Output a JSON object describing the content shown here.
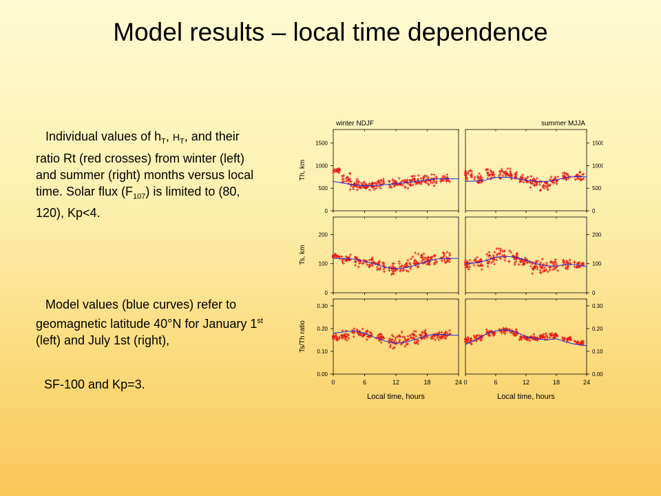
{
  "title": "Model results – local time dependence",
  "text": {
    "p1": {
      "a": "Individual   values of h",
      "sub1": "T",
      "b": ", ",
      "c": "H",
      "sub2": "T",
      "d": ", and their ratio Rt (red crosses) from winter (left) and summer (right) months versus local time. Solar flux (F",
      "sub3": "107",
      "e": ") is limited to (80, 120), Kp<4."
    },
    "p2": {
      "a": "Model values (blue curves) refer to geomagnetic latitude 40°N for January 1",
      "sup": "st",
      "b": " (left) and July 1st (right),"
    },
    "p3": "SF-100 and Kp=3."
  },
  "chart_data": {
    "type": "scatter",
    "panel_titles": [
      "winter NDJF",
      "summer MJJA"
    ],
    "xlabel": "Local time, hours",
    "xlim": [
      0,
      24
    ],
    "xticks": [
      "0",
      "6",
      "12",
      "18",
      "24"
    ],
    "rows": [
      {
        "ylabel": "Th, km",
        "ylim": [
          0,
          1800
        ],
        "yticks": [
          0,
          500,
          1000,
          1500
        ],
        "ytick_labels": [
          "0",
          "500",
          "1000",
          "1500"
        ],
        "winter_model": {
          "x": [
            0,
            2,
            4,
            6,
            8,
            10,
            12,
            14,
            16,
            18,
            20,
            22,
            24
          ],
          "y": [
            650,
            610,
            570,
            555,
            560,
            580,
            600,
            625,
            655,
            685,
            705,
            710,
            705
          ]
        },
        "summer_model": {
          "x": [
            0,
            2,
            4,
            6,
            8,
            10,
            12,
            14,
            16,
            18,
            20,
            22,
            24
          ],
          "y": [
            650,
            660,
            680,
            740,
            745,
            720,
            680,
            655,
            650,
            685,
            740,
            760,
            750
          ]
        },
        "winter_clusters": [
          [
            0.4,
            900,
            100
          ],
          [
            2.5,
            700,
            150
          ],
          [
            4.0,
            600,
            150
          ],
          [
            5.5,
            540,
            120
          ],
          [
            7.0,
            560,
            120
          ],
          [
            9.0,
            600,
            150
          ],
          [
            11.5,
            590,
            150
          ],
          [
            13.5,
            620,
            150
          ],
          [
            15.5,
            650,
            150
          ],
          [
            17.0,
            700,
            150
          ],
          [
            19.0,
            680,
            150
          ],
          [
            21.5,
            690,
            150
          ]
        ],
        "summer_clusters": [
          [
            0.4,
            800,
            150
          ],
          [
            2.5,
            700,
            160
          ],
          [
            5.0,
            800,
            150
          ],
          [
            7.5,
            820,
            150
          ],
          [
            9.5,
            800,
            150
          ],
          [
            11.5,
            700,
            150
          ],
          [
            13.5,
            600,
            200
          ],
          [
            15.5,
            550,
            250
          ],
          [
            17.5,
            660,
            150
          ],
          [
            20.0,
            750,
            150
          ],
          [
            22.5,
            770,
            120
          ]
        ]
      },
      {
        "ylabel": "Ts, km",
        "ylim": [
          0,
          260
        ],
        "yticks": [
          0,
          100,
          200
        ],
        "ytick_labels": [
          "0",
          "100",
          "200"
        ],
        "winter_model": {
          "x": [
            0,
            2,
            4,
            6,
            8,
            10,
            12,
            14,
            16,
            18,
            20,
            22,
            24
          ],
          "y": [
            118,
            118,
            115,
            108,
            98,
            88,
            82,
            86,
            96,
            108,
            116,
            118,
            118
          ]
        },
        "summer_model": {
          "x": [
            0,
            2,
            4,
            6,
            8,
            10,
            12,
            14,
            16,
            18,
            20,
            22,
            24
          ],
          "y": [
            100,
            102,
            110,
            122,
            125,
            122,
            112,
            100,
            92,
            92,
            98,
            96,
            90
          ]
        },
        "winter_clusters": [
          [
            0.4,
            125,
            12
          ],
          [
            2.5,
            118,
            25
          ],
          [
            5.0,
            110,
            30
          ],
          [
            7.0,
            100,
            30
          ],
          [
            9.0,
            90,
            30
          ],
          [
            11.5,
            85,
            30
          ],
          [
            13.5,
            90,
            35
          ],
          [
            15.5,
            105,
            35
          ],
          [
            17.5,
            115,
            35
          ],
          [
            19.0,
            112,
            30
          ],
          [
            21.5,
            120,
            25
          ]
        ],
        "summer_clusters": [
          [
            0.4,
            100,
            25
          ],
          [
            2.5,
            105,
            30
          ],
          [
            5.0,
            120,
            35
          ],
          [
            7.0,
            130,
            40
          ],
          [
            9.5,
            120,
            35
          ],
          [
            11.5,
            105,
            30
          ],
          [
            13.5,
            95,
            35
          ],
          [
            15.5,
            85,
            35
          ],
          [
            17.5,
            95,
            30
          ],
          [
            20.0,
            100,
            25
          ],
          [
            22.5,
            95,
            20
          ]
        ]
      },
      {
        "ylabel": "Ts/Th ratio",
        "ylim": [
          0,
          0.33
        ],
        "yticks": [
          0,
          0.1,
          0.2,
          0.3
        ],
        "ytick_labels": [
          "0.00",
          "0.10",
          "0.20",
          "0.30"
        ],
        "winter_model": {
          "x": [
            0,
            2,
            4,
            6,
            8,
            10,
            12,
            14,
            16,
            18,
            20,
            22,
            24
          ],
          "y": [
            0.18,
            0.185,
            0.19,
            0.18,
            0.16,
            0.145,
            0.135,
            0.14,
            0.155,
            0.17,
            0.175,
            0.172,
            0.17
          ]
        },
        "summer_model": {
          "x": [
            0,
            2,
            4,
            6,
            8,
            10,
            12,
            14,
            16,
            18,
            20,
            22,
            24
          ],
          "y": [
            0.13,
            0.15,
            0.175,
            0.19,
            0.195,
            0.185,
            0.165,
            0.155,
            0.15,
            0.155,
            0.14,
            0.13,
            0.125
          ]
        },
        "winter_clusters": [
          [
            0.4,
            0.16,
            0.02
          ],
          [
            2.5,
            0.17,
            0.03
          ],
          [
            4.5,
            0.18,
            0.03
          ],
          [
            6.5,
            0.17,
            0.04
          ],
          [
            9.0,
            0.16,
            0.03
          ],
          [
            11.5,
            0.14,
            0.04
          ],
          [
            13.5,
            0.15,
            0.04
          ],
          [
            15.5,
            0.16,
            0.04
          ],
          [
            17.5,
            0.17,
            0.03
          ],
          [
            19.5,
            0.17,
            0.03
          ],
          [
            21.5,
            0.17,
            0.03
          ]
        ],
        "summer_clusters": [
          [
            0.4,
            0.15,
            0.02
          ],
          [
            2.5,
            0.16,
            0.02
          ],
          [
            5.0,
            0.18,
            0.02
          ],
          [
            7.5,
            0.19,
            0.02
          ],
          [
            9.5,
            0.18,
            0.02
          ],
          [
            11.5,
            0.16,
            0.02
          ],
          [
            13.5,
            0.16,
            0.02
          ],
          [
            15.5,
            0.165,
            0.02
          ],
          [
            17.5,
            0.17,
            0.02
          ],
          [
            20.0,
            0.155,
            0.015
          ],
          [
            22.5,
            0.14,
            0.02
          ]
        ]
      }
    ],
    "colors": {
      "data": "#e31b1b",
      "model": "#1a2bd8",
      "axes": "#000000"
    }
  }
}
